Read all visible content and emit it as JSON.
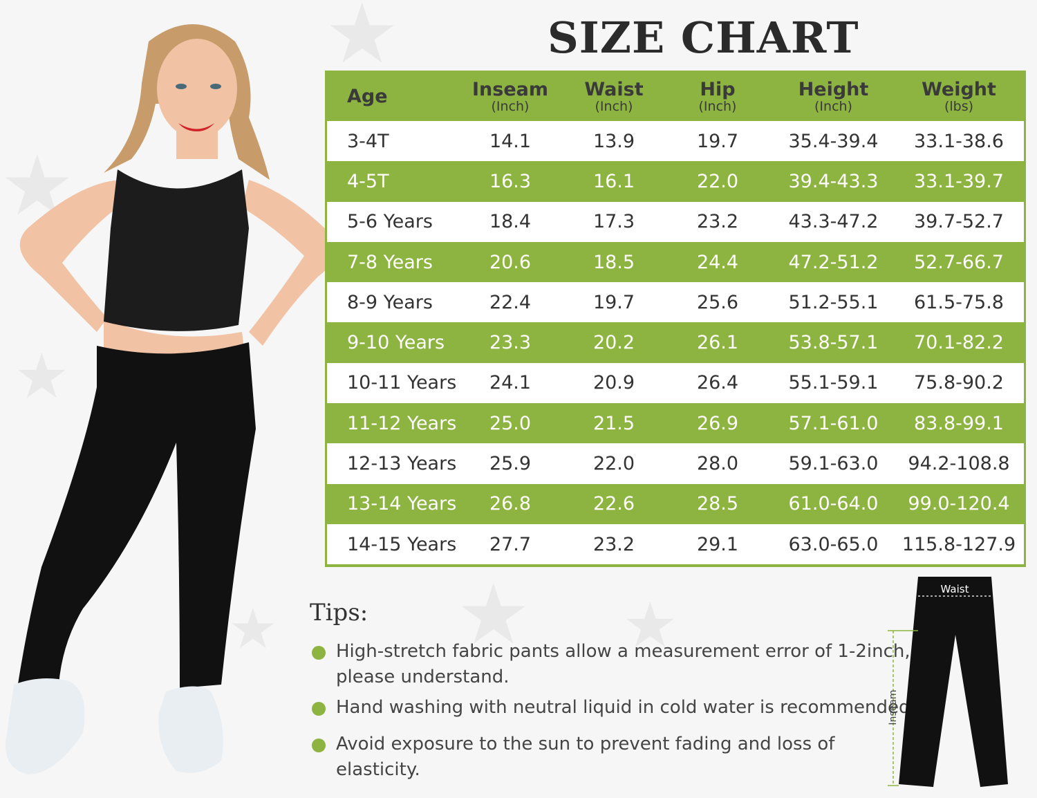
{
  "title": "SIZE CHART",
  "colors": {
    "accent": "#8db441",
    "text": "#333333",
    "background": "#f6f6f6"
  },
  "table": {
    "headers": [
      {
        "label": "Age",
        "unit": ""
      },
      {
        "label": "Inseam",
        "unit": "(Inch)"
      },
      {
        "label": "Waist",
        "unit": "(Inch)"
      },
      {
        "label": "Hip",
        "unit": "(Inch)"
      },
      {
        "label": "Height",
        "unit": "(Inch)"
      },
      {
        "label": "Weight",
        "unit": "(lbs)"
      }
    ],
    "rows": [
      [
        "3-4T",
        "14.1",
        "13.9",
        "19.7",
        "35.4-39.4",
        "33.1-38.6"
      ],
      [
        "4-5T",
        "16.3",
        "16.1",
        "22.0",
        "39.4-43.3",
        "33.1-39.7"
      ],
      [
        "5-6 Years",
        "18.4",
        "17.3",
        "23.2",
        "43.3-47.2",
        "39.7-52.7"
      ],
      [
        "7-8 Years",
        "20.6",
        "18.5",
        "24.4",
        "47.2-51.2",
        "52.7-66.7"
      ],
      [
        "8-9 Years",
        "22.4",
        "19.7",
        "25.6",
        "51.2-55.1",
        "61.5-75.8"
      ],
      [
        "9-10 Years",
        "23.3",
        "20.2",
        "26.1",
        "53.8-57.1",
        "70.1-82.2"
      ],
      [
        "10-11 Years",
        "24.1",
        "20.9",
        "26.4",
        "55.1-59.1",
        "75.8-90.2"
      ],
      [
        "11-12 Years",
        "25.0",
        "21.5",
        "26.9",
        "57.1-61.0",
        "83.8-99.1"
      ],
      [
        "12-13 Years",
        "25.9",
        "22.0",
        "28.0",
        "59.1-63.0",
        "94.2-108.8"
      ],
      [
        "13-14 Years",
        "26.8",
        "22.6",
        "28.5",
        "61.0-64.0",
        "99.0-120.4"
      ],
      [
        "14-15 Years",
        "27.7",
        "23.2",
        "29.1",
        "63.0-65.0",
        "115.8-127.9"
      ]
    ]
  },
  "tips": {
    "title": "Tips:",
    "items": [
      {
        "line1": "High-stretch fabric pants allow a measurement error of 1-2inch,",
        "line2": "please understand."
      },
      {
        "line1": "Hand washing with neutral liquid in cold water is recommended.",
        "line2": ""
      },
      {
        "line1": "Avoid exposure to the sun to prevent fading and loss of",
        "line2": "elasticity."
      }
    ]
  },
  "diagram": {
    "waist_label": "Waist",
    "inseam_label": "Inseam"
  }
}
